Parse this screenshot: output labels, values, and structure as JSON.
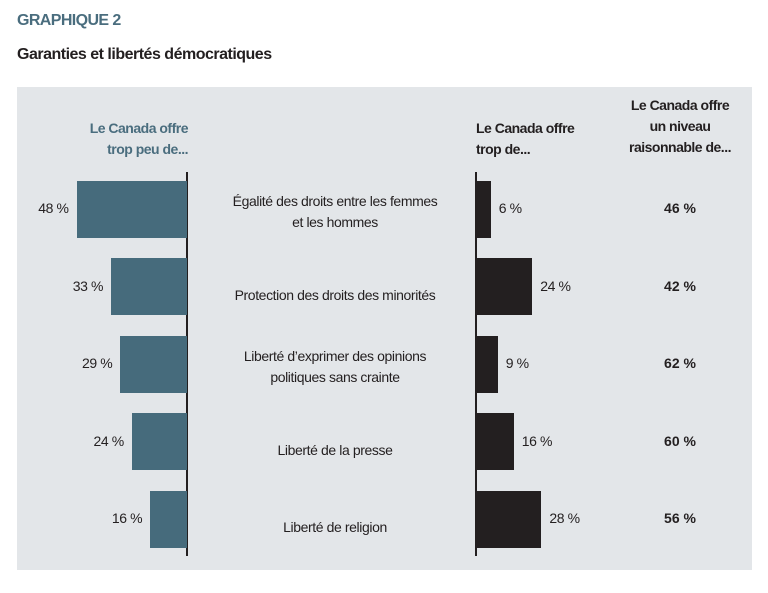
{
  "figure_label": "GRAPHIQUE 2",
  "title": "Garanties et libertés démocratiques",
  "chart_data": {
    "type": "bar",
    "title": "Garanties et libertés démocratiques",
    "categories": [
      "Égalité des droits entre les femmes et les hommes",
      "Protection des droits des minorités",
      "Liberté d’exprimer des opinions politiques sans crainte",
      "Liberté de la presse",
      "Liberté de religion"
    ],
    "series": [
      {
        "name": "Le Canada offre trop peu de...",
        "values": [
          48,
          33,
          29,
          24,
          16
        ],
        "color": "#466b7c",
        "direction": "left"
      },
      {
        "name": "Le Canada offre trop de...",
        "values": [
          6,
          24,
          9,
          16,
          28
        ],
        "color": "#231f20",
        "direction": "right"
      },
      {
        "name": "Le Canada offre un niveau raisonnable de...",
        "values": [
          46,
          42,
          62,
          60,
          56
        ],
        "display": "text"
      }
    ],
    "unit": " %",
    "grid": false
  }
}
